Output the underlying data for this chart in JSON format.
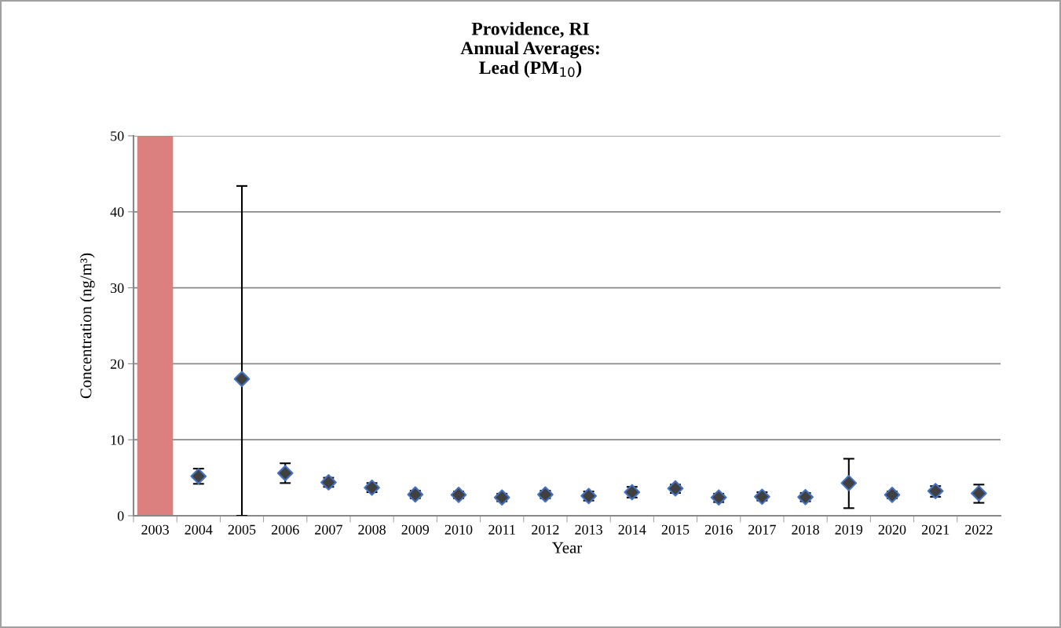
{
  "chart_data": {
    "type": "scatter",
    "title": "Providence, RI\nAnnual Averages:\nLead (PM$_{10}$)",
    "xlabel": "Year",
    "ylabel": "Concentration (ng/m³)",
    "categories": [
      "2003",
      "2004",
      "2005",
      "2006",
      "2007",
      "2008",
      "2009",
      "2010",
      "2011",
      "2012",
      "2013",
      "2014",
      "2015",
      "2016",
      "2017",
      "2018",
      "2019",
      "2020",
      "2021",
      "2022"
    ],
    "series": [
      {
        "color": "#404040",
        "values": [
          null,
          5.2,
          18.0,
          5.6,
          4.4,
          3.7,
          2.8,
          2.75,
          2.4,
          2.8,
          2.6,
          3.1,
          3.6,
          2.4,
          2.5,
          2.45,
          4.3,
          2.75,
          3.25,
          2.95
        ],
        "errors": [
          null,
          [
            4.2,
            6.2
          ],
          [
            0,
            43.4
          ],
          [
            4.3,
            6.9
          ],
          [
            3.8,
            5.0
          ],
          [
            3.1,
            4.3
          ],
          [
            2.3,
            3.3
          ],
          [
            2.3,
            3.2
          ],
          [
            1.9,
            2.9
          ],
          [
            2.3,
            3.3
          ],
          [
            2.0,
            3.2
          ],
          [
            2.4,
            3.8
          ],
          [
            3.0,
            4.1
          ],
          [
            1.8,
            2.9
          ],
          [
            2.0,
            3.1
          ],
          [
            1.9,
            3.0
          ],
          [
            1.0,
            7.5
          ],
          [
            2.3,
            3.2
          ],
          [
            2.5,
            3.9
          ],
          [
            1.7,
            4.1
          ]
        ]
      }
    ],
    "marker": "diamond",
    "ylim": [
      0,
      50
    ],
    "yticks": [
      0,
      10,
      20,
      30,
      40,
      50
    ],
    "grid": "y",
    "bands": [
      {
        "axis": "x",
        "from": "2003",
        "to": "2003",
        "color": "#dc7f7f"
      }
    ]
  }
}
